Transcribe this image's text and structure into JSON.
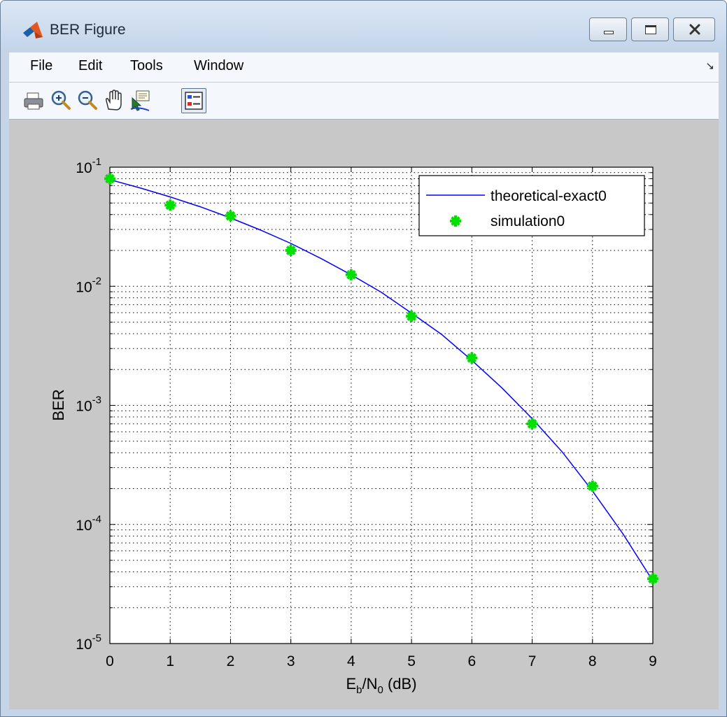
{
  "window": {
    "title": "BER Figure"
  },
  "menu": {
    "items": [
      "File",
      "Edit",
      "Tools",
      "Window"
    ]
  },
  "toolbar": {
    "tools": [
      "print-icon",
      "zoom-in-icon",
      "zoom-out-icon",
      "pan-icon",
      "data-cursor-icon",
      "legend-icon"
    ]
  },
  "chart_data": {
    "type": "line",
    "xlabel_main": "E",
    "xlabel_sub1": "b",
    "xlabel_mid": "/N",
    "xlabel_sub2": "0",
    "xlabel_tail": " (dB)",
    "ylabel": "BER",
    "xlim": [
      0,
      9
    ],
    "ylim": [
      1e-05,
      0.1
    ],
    "yscale": "log",
    "grid": true,
    "legend_position": "top-right",
    "x_ticks": [
      "0",
      "1",
      "2",
      "3",
      "4",
      "5",
      "6",
      "7",
      "8",
      "9"
    ],
    "y_ticks": [
      {
        "base": "10",
        "exp": "-1",
        "value": 0.1
      },
      {
        "base": "10",
        "exp": "-2",
        "value": 0.01
      },
      {
        "base": "10",
        "exp": "-3",
        "value": 0.001
      },
      {
        "base": "10",
        "exp": "-4",
        "value": 0.0001
      },
      {
        "base": "10",
        "exp": "-5",
        "value": 1e-05
      }
    ],
    "series": [
      {
        "name": "theoretical-exact0",
        "color": "#0000ff",
        "marker": "none",
        "x": [
          0,
          0.5,
          1,
          1.5,
          2,
          2.5,
          3,
          3.5,
          4,
          4.5,
          5,
          5.5,
          6,
          6.5,
          7,
          7.5,
          8,
          8.5,
          9
        ],
        "y": [
          0.0786,
          0.067,
          0.0563,
          0.0465,
          0.0375,
          0.0296,
          0.0229,
          0.0171,
          0.0125,
          0.00889,
          0.00595,
          0.00394,
          0.00239,
          0.0014,
          0.000773,
          0.000405,
          0.000191,
          8.41e-05,
          3.36e-05
        ]
      },
      {
        "name": "simulation0",
        "color": "#00e000",
        "marker": "star",
        "x": [
          0,
          1,
          2,
          3,
          4,
          5,
          6,
          7,
          8,
          9
        ],
        "y": [
          0.08,
          0.048,
          0.039,
          0.02,
          0.0125,
          0.0056,
          0.0025,
          0.0007,
          0.00021,
          3.5e-05
        ]
      }
    ]
  }
}
